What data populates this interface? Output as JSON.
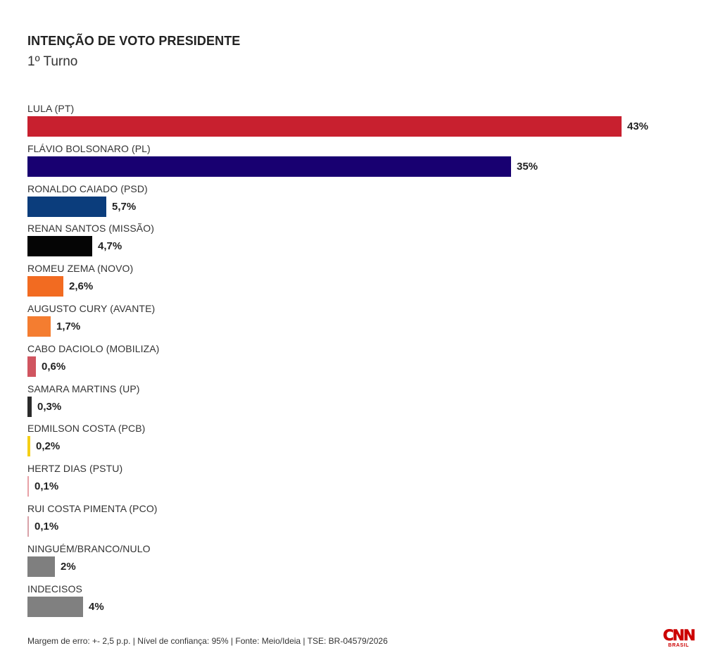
{
  "chart_data": {
    "type": "bar",
    "orientation": "horizontal",
    "title": "INTENÇÃO DE VOTO PRESIDENTE",
    "subtitle": "1º Turno",
    "categories": [
      "LULA (PT)",
      "FLÁVIO BOLSONARO (PL)",
      "RONALDO CAIADO (PSD)",
      "RENAN SANTOS (MISSÃO)",
      "ROMEU ZEMA (NOVO)",
      "AUGUSTO CURY (AVANTE)",
      "CABO DACIOLO (MOBILIZA)",
      "SAMARA MARTINS (UP)",
      "EDMILSON COSTA (PCB)",
      "HERTZ DIAS (PSTU)",
      "RUI COSTA PIMENTA (PCO)",
      "NINGUÉM/BRANCO/NULO",
      "INDECISOS"
    ],
    "values": [
      43,
      35,
      5.7,
      4.7,
      2.6,
      1.7,
      0.6,
      0.3,
      0.2,
      0.1,
      0.1,
      2,
      4
    ],
    "value_labels": [
      "43%",
      "35%",
      "5,7%",
      "4,7%",
      "2,6%",
      "1,7%",
      "0,6%",
      "0,3%",
      "0,2%",
      "0,1%",
      "0,1%",
      "2%",
      "4%"
    ],
    "colors": [
      "#c8202f",
      "#180071",
      "#0b3d7c",
      "#050505",
      "#f26b21",
      "#f47d30",
      "#d05560",
      "#2b2b2b",
      "#f5cf16",
      "#e8a0a6",
      "#d9a2a8",
      "#7f7f7f",
      "#808080"
    ],
    "xlim": [
      0,
      43
    ],
    "grid": false,
    "legend": "none"
  },
  "footer": {
    "note": "Margem de erro: +- 2,5 p.p. | Nível de confiança: 95% | Fonte: Meio/Ideia | TSE: BR-04579/2026"
  },
  "logo": {
    "word": "CNN",
    "sub": "BRASIL",
    "color": "#cc0000"
  }
}
